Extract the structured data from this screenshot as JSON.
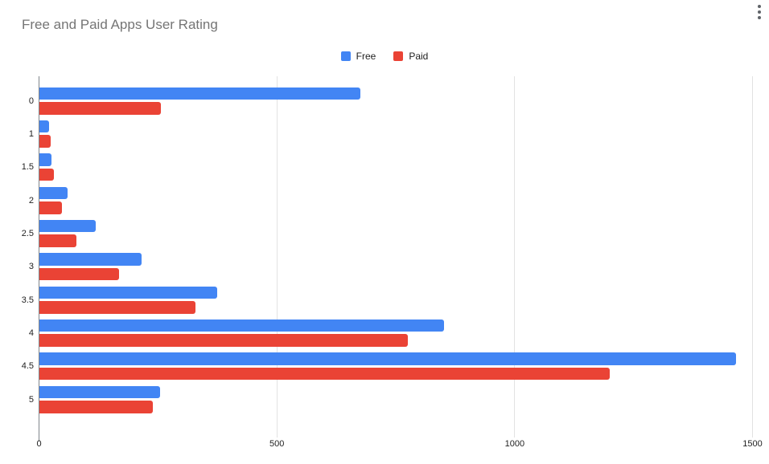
{
  "title": "Free and Paid Apps User Rating",
  "legend": [
    {
      "label": "Free",
      "color": "#4285F4"
    },
    {
      "label": "Paid",
      "color": "#EA4335"
    }
  ],
  "chart_data": {
    "type": "bar",
    "orientation": "horizontal",
    "title": "Free and Paid Apps User Rating",
    "xlabel": "",
    "ylabel": "",
    "categories": [
      "0",
      "1",
      "1.5",
      "2",
      "2.5",
      "3",
      "3.5",
      "4",
      "4.5",
      "5"
    ],
    "series": [
      {
        "name": "Free",
        "color": "#4285F4",
        "values": [
          674,
          20,
          26,
          59,
          119,
          215,
          374,
          851,
          1464,
          254
        ]
      },
      {
        "name": "Paid",
        "color": "#EA4335",
        "values": [
          255,
          24,
          30,
          47,
          77,
          168,
          328,
          775,
          1199,
          238
        ]
      }
    ],
    "x_axis": {
      "ticks": [
        0,
        500,
        1000,
        1500
      ],
      "max": 1500
    },
    "grid": true,
    "legend_position": "top-center",
    "axis_color": "#80868b",
    "gridline_color": "#e2e2e2"
  }
}
